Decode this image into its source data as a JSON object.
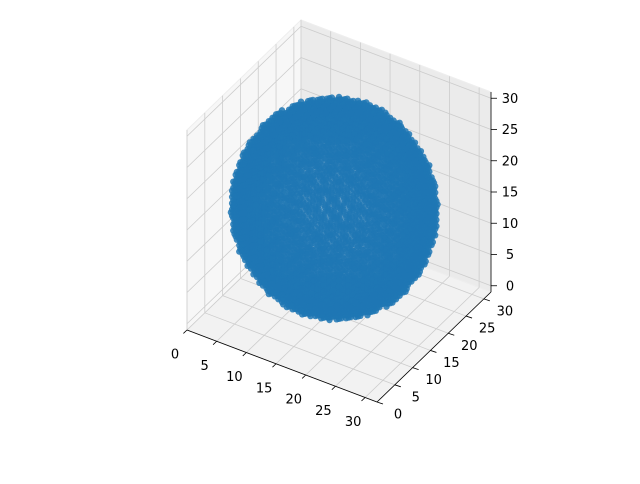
{
  "chart_data": {
    "type": "scatter",
    "projection": "3d",
    "title": "",
    "xlabel": "",
    "ylabel": "",
    "zlabel": "",
    "xlim": [
      0,
      32
    ],
    "ylim": [
      0,
      32
    ],
    "zlim": [
      -1,
      31
    ],
    "x_ticks": [
      0,
      5,
      10,
      15,
      20,
      25,
      30
    ],
    "y_ticks": [
      0,
      5,
      10,
      15,
      20,
      25,
      30
    ],
    "z_ticks": [
      0,
      5,
      10,
      15,
      20,
      25,
      30
    ],
    "x_tick_labels": [
      "0",
      "5",
      "10",
      "15",
      "20",
      "25",
      "30"
    ],
    "y_tick_labels": [
      "0",
      "5",
      "10",
      "15",
      "20",
      "25",
      "30"
    ],
    "z_tick_labels": [
      "0",
      "5",
      "10",
      "15",
      "20",
      "25",
      "30"
    ],
    "grid": true,
    "legend": "none",
    "series": [
      {
        "shape": "solid sphere of points",
        "center": [
          15.5,
          15.5,
          15.5
        ],
        "radius": 15,
        "grid_step": 1,
        "color": "#1f77b4"
      }
    ]
  },
  "colors": {
    "marker": "#1f77b4",
    "pane": "#f2f2f2",
    "grid": "#cccccc",
    "axis_line": "#000000"
  }
}
